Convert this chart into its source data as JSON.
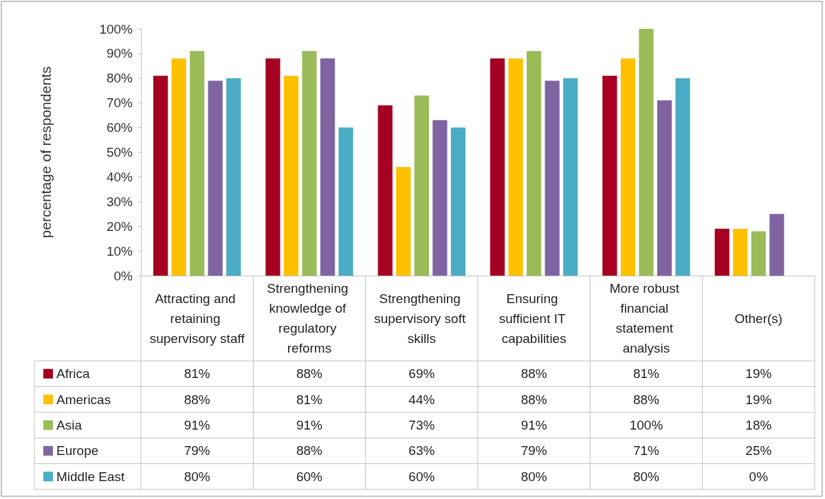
{
  "chart_data": {
    "type": "bar",
    "ylabel": "percentage of respondents",
    "categories": [
      "Attracting and retaining supervisory staff",
      "Strengthening knowledge of regulatory reforms",
      "Strengthening supervisory soft skills",
      "Ensuring sufficient IT capabilities",
      "More robust financial statement analysis",
      "Other(s)"
    ],
    "series": [
      {
        "name": "Africa",
        "color": "#a50021",
        "values": [
          81,
          88,
          69,
          88,
          81,
          19
        ],
        "value_labels": [
          "81%",
          "88%",
          "69%",
          "88%",
          "81%",
          "19%"
        ]
      },
      {
        "name": "Americas",
        "color": "#ffc000",
        "values": [
          88,
          81,
          44,
          88,
          88,
          19
        ],
        "value_labels": [
          "88%",
          "81%",
          "44%",
          "88%",
          "88%",
          "19%"
        ]
      },
      {
        "name": "Asia",
        "color": "#9bbb59",
        "values": [
          91,
          91,
          73,
          91,
          100,
          18
        ],
        "value_labels": [
          "91%",
          "91%",
          "73%",
          "91%",
          "100%",
          "18%"
        ]
      },
      {
        "name": "Europe",
        "color": "#8064a2",
        "values": [
          79,
          88,
          63,
          79,
          71,
          25
        ],
        "value_labels": [
          "79%",
          "88%",
          "63%",
          "79%",
          "71%",
          "25%"
        ]
      },
      {
        "name": "Middle East",
        "color": "#4bacc6",
        "values": [
          80,
          60,
          60,
          80,
          80,
          0
        ],
        "value_labels": [
          "80%",
          "60%",
          "60%",
          "80%",
          "80%",
          "0%"
        ]
      }
    ],
    "ylim": [
      0,
      100
    ],
    "yticks": [
      {
        "value": 0,
        "label": "0%"
      },
      {
        "value": 10,
        "label": "10%"
      },
      {
        "value": 20,
        "label": "20%"
      },
      {
        "value": 30,
        "label": "30%"
      },
      {
        "value": 40,
        "label": "40%"
      },
      {
        "value": 50,
        "label": "50%"
      },
      {
        "value": 60,
        "label": "60%"
      },
      {
        "value": 70,
        "label": "70%"
      },
      {
        "value": 80,
        "label": "80%"
      },
      {
        "value": 90,
        "label": "90%"
      },
      {
        "value": 100,
        "label": "100%"
      }
    ],
    "legend": "bottom"
  }
}
